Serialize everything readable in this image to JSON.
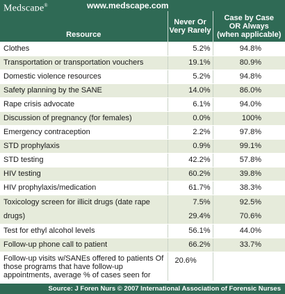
{
  "banner": {
    "brand": "Medscape",
    "brand_mark": "®",
    "url": "www.medscape.com"
  },
  "table": {
    "headers": {
      "resource": "Resource",
      "never_line1": "Never Or",
      "never_line2": "Very Rarely",
      "case_line1": "Case by Case",
      "case_line2": "OR Always",
      "case_line3": "(when applicable)"
    },
    "rows": [
      {
        "resource": "Clothes",
        "never": "5.2%",
        "case": "94.8%"
      },
      {
        "resource": "Transportation or transportation vouchers",
        "never": "19.1%",
        "case": "80.9%"
      },
      {
        "resource": "Domestic violence resources",
        "never": "5.2%",
        "case": "94.8%"
      },
      {
        "resource": "Safety planning by the SANE",
        "never": "14.0%",
        "case": "86.0%"
      },
      {
        "resource": "Rape crisis advocate",
        "never": "6.1%",
        "case": "94.0%"
      },
      {
        "resource": "Discussion of pregnancy (for females)",
        "never": "0.0%",
        "case": "100%"
      },
      {
        "resource": "Emergency contraception",
        "never": "2.2%",
        "case": "97.8%"
      },
      {
        "resource": "STD prophylaxis",
        "never": "0.9%",
        "case": "99.1%"
      },
      {
        "resource": "STD testing",
        "never": "42.2%",
        "case": "57.8%"
      },
      {
        "resource": "HIV testing",
        "never": "60.2%",
        "case": "39.8%"
      },
      {
        "resource": "HIV prophylaxis/medication",
        "never": "61.7%",
        "case": "38.3%"
      },
      {
        "resource": "Toxicology screen for illicit drugs (date rape drugs)",
        "never": "7.5%",
        "case": "92.5%",
        "never_2": "29.4%",
        "case_2": "70.6%"
      },
      {
        "resource": "Test for ethyl alcohol levels",
        "never": "56.1%",
        "case": "44.0%"
      },
      {
        "resource": "Follow-up phone call to patient",
        "never": "66.2%",
        "case": "33.7%"
      },
      {
        "resource": "Follow-up visits w/SANEs offered to patients Of those programs that have follow-up appointments, average % of cases seen for",
        "never": "20.6%",
        "case": ""
      }
    ]
  },
  "footer": {
    "source": "Source: J Foren Nurs © 2007 International Association of Forensic Nurses"
  }
}
